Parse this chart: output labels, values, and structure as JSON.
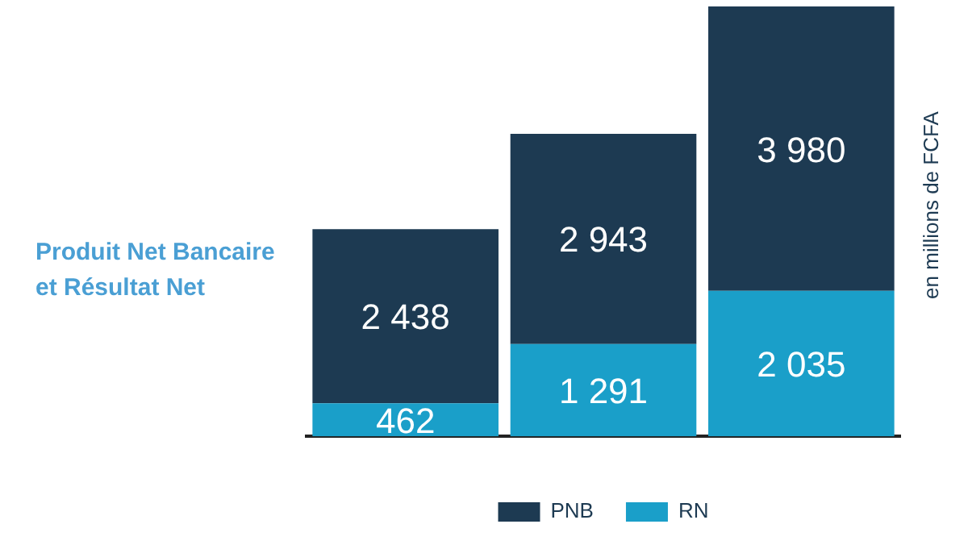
{
  "chart_data": {
    "type": "bar",
    "title": "Produit Net Bancaire\net Résultat Net",
    "ylabel": "en millions de FCFA",
    "categories": [
      null,
      null,
      null
    ],
    "stacked": true,
    "legend": "bottom",
    "grid": false,
    "series": [
      {
        "name": "RN",
        "color": "#1a9fc9",
        "values": [
          462,
          1291,
          2035
        ],
        "value_labels": [
          "462",
          "1 291",
          "2 035"
        ]
      },
      {
        "name": "PNB",
        "color": "#1d3a52",
        "values": [
          2438,
          2943,
          3980
        ],
        "value_labels": [
          "2 438",
          "2 943",
          "3 980"
        ]
      }
    ]
  }
}
